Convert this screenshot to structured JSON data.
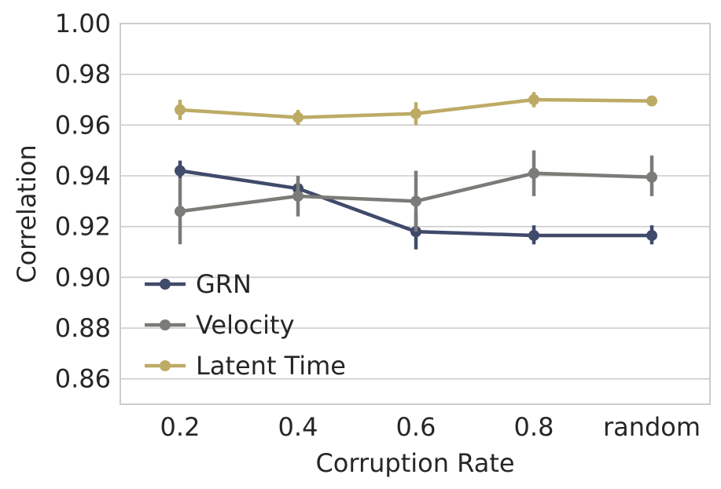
{
  "chart_data": {
    "type": "line",
    "title": "",
    "xlabel": "Corruption Rate",
    "ylabel": "Correlation",
    "categories": [
      "0.2",
      "0.4",
      "0.6",
      "0.8",
      "random"
    ],
    "ylim": [
      0.85,
      1.0
    ],
    "yticks": [
      0.86,
      0.88,
      0.9,
      0.92,
      0.94,
      0.96,
      0.98,
      1.0
    ],
    "ytick_labels": [
      "0.86",
      "0.88",
      "0.90",
      "0.92",
      "0.94",
      "0.96",
      "0.98",
      "1.00"
    ],
    "grid": true,
    "legend_position": "lower-left",
    "series": [
      {
        "name": "GRN",
        "color": "#404a6b",
        "values": [
          0.942,
          0.935,
          0.918,
          0.9165,
          0.9165
        ],
        "err_low": [
          0.939,
          0.933,
          0.911,
          0.913,
          0.913
        ],
        "err_high": [
          0.946,
          0.937,
          0.925,
          0.9205,
          0.9205
        ]
      },
      {
        "name": "Velocity",
        "color": "#7b7b77",
        "values": [
          0.926,
          0.932,
          0.93,
          0.941,
          0.9395
        ],
        "err_low": [
          0.913,
          0.924,
          0.918,
          0.932,
          0.932
        ],
        "err_high": [
          0.939,
          0.94,
          0.942,
          0.95,
          0.948
        ]
      },
      {
        "name": "Latent Time",
        "color": "#bdab65",
        "values": [
          0.966,
          0.963,
          0.9645,
          0.97,
          0.9695
        ],
        "err_low": [
          0.962,
          0.96,
          0.96,
          0.967,
          0.9675
        ],
        "err_high": [
          0.97,
          0.966,
          0.969,
          0.973,
          0.9715
        ]
      }
    ]
  }
}
